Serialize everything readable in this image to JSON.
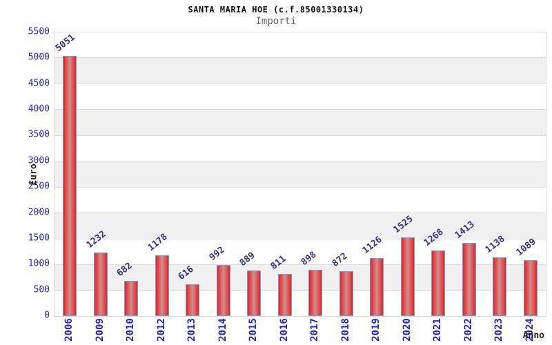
{
  "header": {
    "title": "SANTA MARIA HOE (c.f.85001330134)",
    "subtitle": "Importi"
  },
  "chart_data": {
    "type": "bar",
    "title": "SANTA MARIA HOE (c.f.85001330134)",
    "subtitle": "Importi",
    "categories": [
      "2006",
      "2009",
      "2010",
      "2012",
      "2013",
      "2014",
      "2015",
      "2016",
      "2017",
      "2018",
      "2019",
      "2020",
      "2021",
      "2022",
      "2023",
      "2024"
    ],
    "values": [
      5051,
      1232,
      682,
      1178,
      616,
      992,
      889,
      811,
      898,
      872,
      1126,
      1525,
      1268,
      1413,
      1138,
      1089
    ],
    "xlabel": "Anno",
    "ylabel": "Euro",
    "ylim": [
      0,
      5500
    ],
    "ytick_step": 500,
    "grid": "horizontal alternating bands",
    "legend": "none",
    "data_labels": "rotated above bars",
    "colors": {
      "bar_edge": "#ec2020",
      "bar_center": "#cf8f8f",
      "bar_border": "#58a8ee",
      "axis_tick_text": "#2222cc",
      "value_label_text": "#333380",
      "band_fill": "#f0f0f0",
      "gridline": "#dddddd",
      "title_text": "#111111",
      "subtitle_text": "#666666"
    }
  }
}
